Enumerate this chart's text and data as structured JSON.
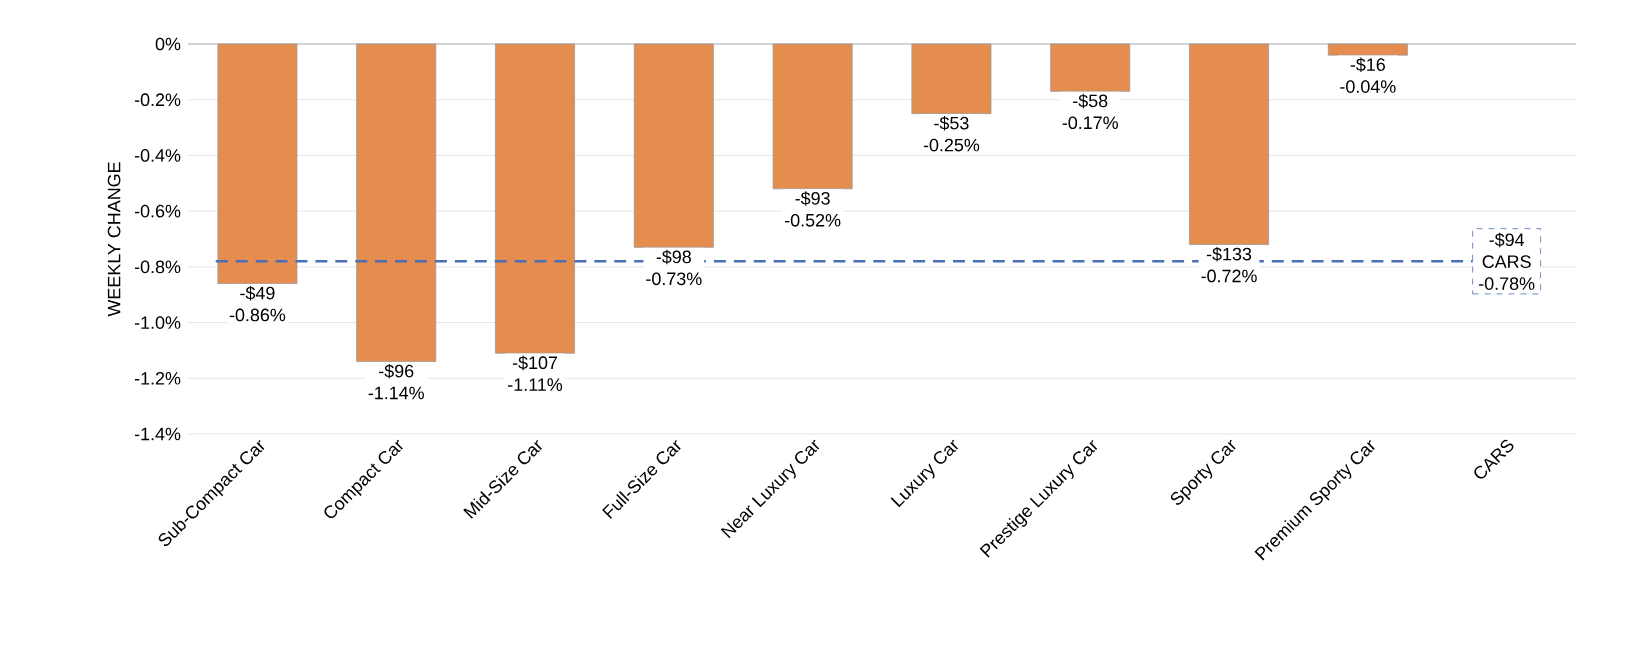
{
  "chart_data": {
    "type": "bar",
    "ylabel": "WEEKLY CHANGE",
    "categories": [
      "Sub-Compact Car",
      "Compact Car",
      "Mid-Size Car",
      "Full-Size Car",
      "Near Luxury Car",
      "Luxury Car",
      "Prestige Luxury Car",
      "Sporty Car",
      "Premium Sporty Car",
      "CARS"
    ],
    "values": [
      -0.86,
      -1.14,
      -1.11,
      -0.73,
      -0.52,
      -0.25,
      -0.17,
      -0.72,
      -0.04,
      null
    ],
    "value_labels": [
      "-0.86%",
      "-1.14%",
      "-1.11%",
      "-0.73%",
      "-0.52%",
      "-0.25%",
      "-0.17%",
      "-0.72%",
      "-0.04%",
      null
    ],
    "color": "#e58c4f",
    "ylim": [
      -1.4,
      0
    ],
    "yticks": [
      {
        "value": -1.4,
        "label": "-1.4%"
      },
      {
        "value": -1.2,
        "label": "-1.2%"
      },
      {
        "value": -1.0,
        "label": "-1.0%"
      },
      {
        "value": -0.8,
        "label": "-0.8%"
      },
      {
        "value": -0.6,
        "label": "-0.6%"
      },
      {
        "value": -0.4,
        "label": "-0.4%"
      },
      {
        "value": -0.2,
        "label": "-0.2%"
      },
      {
        "value": 0,
        "label": "0%"
      }
    ],
    "grid": "y",
    "annotations": [
      {
        "text": "-$49",
        "x": "Sub-Compact Car",
        "y": -0.86
      },
      {
        "text": "-$96",
        "x": "Compact Car",
        "y": -1.14
      },
      {
        "text": "-$107",
        "x": "Mid-Size Car",
        "y": -1.11
      },
      {
        "text": "-$98",
        "x": "Full-Size Car",
        "y": -0.73
      },
      {
        "text": "-$93",
        "x": "Near Luxury Car",
        "y": -0.52
      },
      {
        "text": "-$53",
        "x": "Luxury Car",
        "y": -0.25
      },
      {
        "text": "-$58",
        "x": "Prestige Luxury Car",
        "y": -0.17
      },
      {
        "text": "-$133",
        "x": "Sporty Car",
        "y": -0.72
      },
      {
        "text": "-$16",
        "x": "Premium Sporty Car",
        "y": -0.04
      }
    ],
    "ref_lines": [
      {
        "axis": "y",
        "value": -0.78,
        "label": "-$94 CARS -0.78%",
        "color": "#4a6fb5",
        "line_style": "dashed"
      }
    ]
  }
}
